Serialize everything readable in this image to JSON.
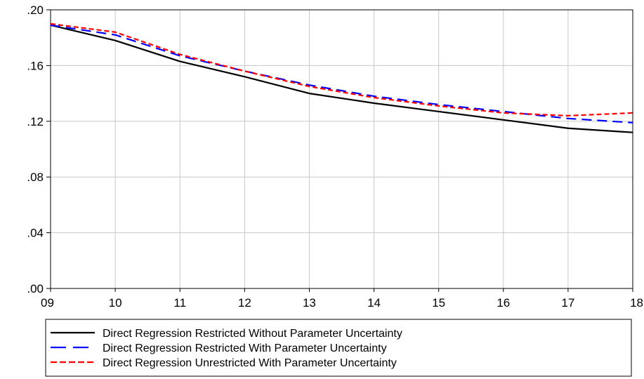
{
  "chart_data": {
    "type": "line",
    "x": [
      "09",
      "10",
      "11",
      "12",
      "13",
      "14",
      "15",
      "16",
      "17",
      "18"
    ],
    "ylim": [
      0,
      0.2
    ],
    "yticks": [
      0,
      0.04,
      0.08,
      0.12,
      0.16,
      0.2
    ],
    "ytick_labels": [
      ".00",
      ".04",
      ".08",
      ".12",
      ".16",
      ".20"
    ],
    "grid": true,
    "legend_position": "bottom",
    "series": [
      {
        "name": "Direct Regression Restricted Without Parameter Uncertainty",
        "color": "#000000",
        "dash": "solid",
        "values": [
          0.189,
          0.178,
          0.163,
          0.152,
          0.14,
          0.133,
          0.127,
          0.121,
          0.115,
          0.112
        ]
      },
      {
        "name": "Direct Regression Restricted With Parameter Uncertainty",
        "color": "#0000ff",
        "dash": "long-dash",
        "values": [
          0.189,
          0.182,
          0.167,
          0.156,
          0.146,
          0.138,
          0.132,
          0.127,
          0.122,
          0.119
        ]
      },
      {
        "name": "Direct Regression Unrestricted With Parameter Uncertainty",
        "color": "#ff0000",
        "dash": "short-dash",
        "values": [
          0.19,
          0.184,
          0.168,
          0.156,
          0.145,
          0.137,
          0.131,
          0.126,
          0.124,
          0.126
        ]
      }
    ]
  }
}
